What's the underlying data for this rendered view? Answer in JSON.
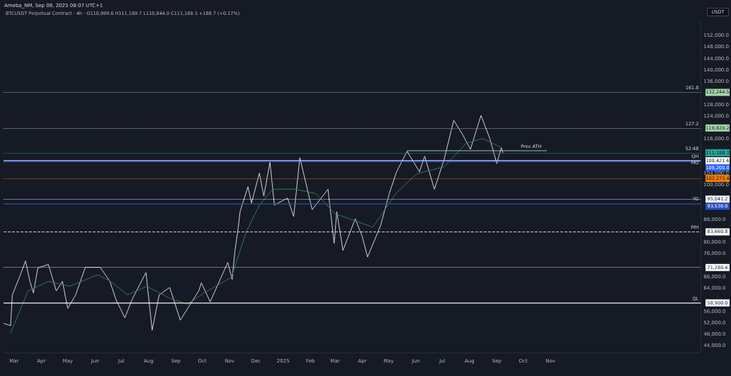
{
  "chart_data": {
    "type": "line",
    "title": "Ameba_NM, Sep 08, 2025 08:07 UTC+1",
    "subtitle": "BTCUSDT Perpetual Contract · 4h · O110,999.6 H111,189.7 L110,844.0 C111,188.3 +188.7 (+0.17%)",
    "ylabel": "USDT",
    "series": [
      {
        "color": "#d1d4dc",
        "x": [
          "2024-02-18",
          "2024-02-26",
          "2024-02-28",
          "2024-03-07",
          "2024-03-14",
          "2024-03-19",
          "2024-03-23",
          "2024-03-28",
          "2024-04-09",
          "2024-04-18",
          "2024-04-25",
          "2024-05-01",
          "2024-05-10",
          "2024-05-21",
          "2024-06-07",
          "2024-06-18",
          "2024-06-25",
          "2024-07-05",
          "2024-07-13",
          "2024-07-29",
          "2024-08-05",
          "2024-08-13",
          "2024-08-25",
          "2024-09-06",
          "2024-09-27",
          "2024-09-30",
          "2024-10-10",
          "2024-10-30",
          "2024-11-04",
          "2024-11-07",
          "2024-11-11",
          "2024-11-13",
          "2024-11-22",
          "2024-11-26",
          "2024-12-05",
          "2024-12-10",
          "2024-12-17",
          "2024-12-22",
          "2025-01-06",
          "2025-01-13",
          "2025-01-20",
          "2025-02-03",
          "2025-02-21",
          "2025-02-28",
          "2025-03-03",
          "2025-03-10",
          "2025-03-24",
          "2025-04-01",
          "2025-04-07",
          "2025-04-22",
          "2025-05-02",
          "2025-05-10",
          "2025-05-22",
          "2025-06-05",
          "2025-06-11",
          "2025-06-22",
          "2025-07-03",
          "2025-07-14",
          "2025-07-24",
          "2025-08-02",
          "2025-08-14",
          "2025-08-24",
          "2025-09-01",
          "2025-09-06",
          "2025-09-08"
        ],
        "values": [
          51800,
          51000,
          61700,
          67800,
          73500,
          66400,
          62400,
          71100,
          72300,
          63100,
          66400,
          57000,
          61700,
          71300,
          71300,
          66400,
          60000,
          53700,
          60000,
          69500,
          49400,
          61700,
          64300,
          52900,
          63100,
          65900,
          59300,
          73000,
          67100,
          76600,
          85300,
          90700,
          99400,
          93700,
          104100,
          96100,
          107900,
          93000,
          95400,
          89000,
          109500,
          91400,
          98500,
          79600,
          90700,
          77200,
          88200,
          82000,
          74900,
          86000,
          97300,
          104600,
          111700,
          104600,
          110000,
          98500,
          108800,
          122500,
          117600,
          112400,
          124200,
          116200,
          107400,
          112900,
          111200
        ]
      },
      {
        "color": "#2e7d4f",
        "x": [
          "2024-02-26",
          "2024-03-17",
          "2024-04-09",
          "2024-05-03",
          "2024-06-04",
          "2024-06-19",
          "2024-07-08",
          "2024-07-30",
          "2024-08-24",
          "2024-09-14",
          "2024-10-03",
          "2024-11-03",
          "2024-11-20",
          "2024-12-05",
          "2024-12-20",
          "2025-01-15",
          "2025-02-07",
          "2025-03-01",
          "2025-04-13",
          "2025-05-10",
          "2025-06-02",
          "2025-07-03",
          "2025-07-28",
          "2025-08-16",
          "2025-09-07"
        ],
        "values": [
          48500,
          63100,
          66400,
          64700,
          68700,
          66400,
          61700,
          64700,
          60700,
          58400,
          62400,
          67800,
          83600,
          93000,
          98500,
          98500,
          97000,
          90000,
          85300,
          97300,
          103900,
          106300,
          114500,
          116200,
          112900
        ]
      },
      {
        "color": "#b2b5be",
        "x": [
          "2025-05-22",
          "2025-10-28"
        ],
        "values": [
          111900,
          111900
        ]
      }
    ],
    "xlim": [
      "2024-02-18",
      "2026-04-21"
    ],
    "xticks": [
      {
        "value": "2024-03-01",
        "label": "Mar"
      },
      {
        "value": "2024-04-01",
        "label": "Apr"
      },
      {
        "value": "2024-05-01",
        "label": "May"
      },
      {
        "value": "2024-06-01",
        "label": "Jun"
      },
      {
        "value": "2024-07-01",
        "label": "Jul"
      },
      {
        "value": "2024-08-01",
        "label": "Aug"
      },
      {
        "value": "2024-09-01",
        "label": "Sep"
      },
      {
        "value": "2024-10-01",
        "label": "Oct"
      },
      {
        "value": "2024-11-01",
        "label": "Nov"
      },
      {
        "value": "2024-12-01",
        "label": "Dec"
      },
      {
        "value": "2025-01-01",
        "label": "2025"
      },
      {
        "value": "2025-02-01",
        "label": "Feb"
      },
      {
        "value": "2025-03-01",
        "label": "Mar"
      },
      {
        "value": "2025-04-01",
        "label": "Apr"
      },
      {
        "value": "2025-05-01",
        "label": "May"
      },
      {
        "value": "2025-06-01",
        "label": "Jun"
      },
      {
        "value": "2025-07-01",
        "label": "Jul"
      },
      {
        "value": "2025-08-01",
        "label": "Aug"
      },
      {
        "value": "2025-09-01",
        "label": "Sep"
      },
      {
        "value": "2025-10-01",
        "label": "Oct"
      },
      {
        "value": "2025-11-01",
        "label": "Nov"
      }
    ],
    "ylim": [
      41600,
      157000
    ],
    "yticks": [
      {
        "value": 152000,
        "label": "152,000.0"
      },
      {
        "value": 148000,
        "label": "148,000.0"
      },
      {
        "value": 144000,
        "label": "144,000.0"
      },
      {
        "value": 140000,
        "label": "140,000.0"
      },
      {
        "value": 136000,
        "label": "136,000.0"
      },
      {
        "value": 128000,
        "label": "128,000.0"
      },
      {
        "value": 124000,
        "label": "124,000.0"
      },
      {
        "value": 116000,
        "label": "116,000.0"
      },
      {
        "value": 104000,
        "label": "104,000.0"
      },
      {
        "value": 100000,
        "label": "100,000.0"
      },
      {
        "value": 88000,
        "label": "88,000.0"
      },
      {
        "value": 80000,
        "label": "80,000.0"
      },
      {
        "value": 76000,
        "label": "76,000.0"
      },
      {
        "value": 68000,
        "label": "68,000.0"
      },
      {
        "value": 64000,
        "label": "64,000.0"
      },
      {
        "value": 56000,
        "label": "56,000.0"
      },
      {
        "value": 52000,
        "label": "52,000.0"
      },
      {
        "value": 48000,
        "label": "48,000.0"
      },
      {
        "value": 44000,
        "label": "44,000.0"
      }
    ],
    "ref_lines": [
      {
        "axis": "y",
        "value": 132244.5,
        "label": "132,244.5",
        "color": "#a5d6a7",
        "line_style": "dotted"
      },
      {
        "axis": "y",
        "value": 119820.2,
        "label": "119,820.2",
        "color": "#a5d6a7",
        "line_style": "dotted"
      },
      {
        "axis": "y",
        "value": 111188.3,
        "label": "111,188.3",
        "color": "#26a69a",
        "line_style": "dotted"
      },
      {
        "axis": "y",
        "value": 108421.6,
        "label": "108,421.6",
        "color": "#ffffff",
        "line_style": "solid"
      },
      {
        "axis": "y",
        "value": 108200.0,
        "label": "108,200.0",
        "color": "#2962ff",
        "line_style": "solid"
      },
      {
        "axis": "y",
        "value": 102273.4,
        "label": "102,273.4",
        "color": "#f57c00",
        "line_style": "dotted"
      },
      {
        "axis": "y",
        "value": 95041.2,
        "label": "95,041.2",
        "color": "#ffffff",
        "line_style": "dotted"
      },
      {
        "axis": "y",
        "value": 93530.0,
        "label": "93,530.0",
        "color": "#2a4fbf",
        "line_style": "solid"
      },
      {
        "axis": "y",
        "value": 83660.8,
        "label": "83,660.8",
        "color": "#ffffff",
        "line_style": "dashed"
      },
      {
        "axis": "y",
        "value": 71280.4,
        "label": "71,280.4",
        "color": "#ffffff",
        "line_style": "dotted"
      },
      {
        "axis": "y",
        "value": 58900.0,
        "label": "58,900.0",
        "color": "#ffffff",
        "line_style": "solid"
      }
    ],
    "annotations": [
      {
        "text": "Prev ATH",
        "x": "2025-10-10",
        "y": 111900
      },
      {
        "text": "161.8",
        "x": "2026-04-21",
        "y": 132244.5
      },
      {
        "text": "127.2",
        "x": "2026-04-21",
        "y": 119820.2
      },
      {
        "text": "52:48",
        "x": "2026-04-21",
        "y": 111188.3
      },
      {
        "text": "QH",
        "x": "2026-04-21",
        "y": 108421.6
      },
      {
        "text": "MO",
        "x": "2026-04-21",
        "y": 108200.0
      },
      {
        "text": "YO",
        "x": "2026-04-21",
        "y": 93530.0
      },
      {
        "text": "MH",
        "x": "2026-04-21",
        "y": 83660.8
      },
      {
        "text": "QL",
        "x": "2026-04-21",
        "y": 58900.0
      }
    ],
    "marker": "none",
    "line_style": "solid",
    "grid": false
  }
}
